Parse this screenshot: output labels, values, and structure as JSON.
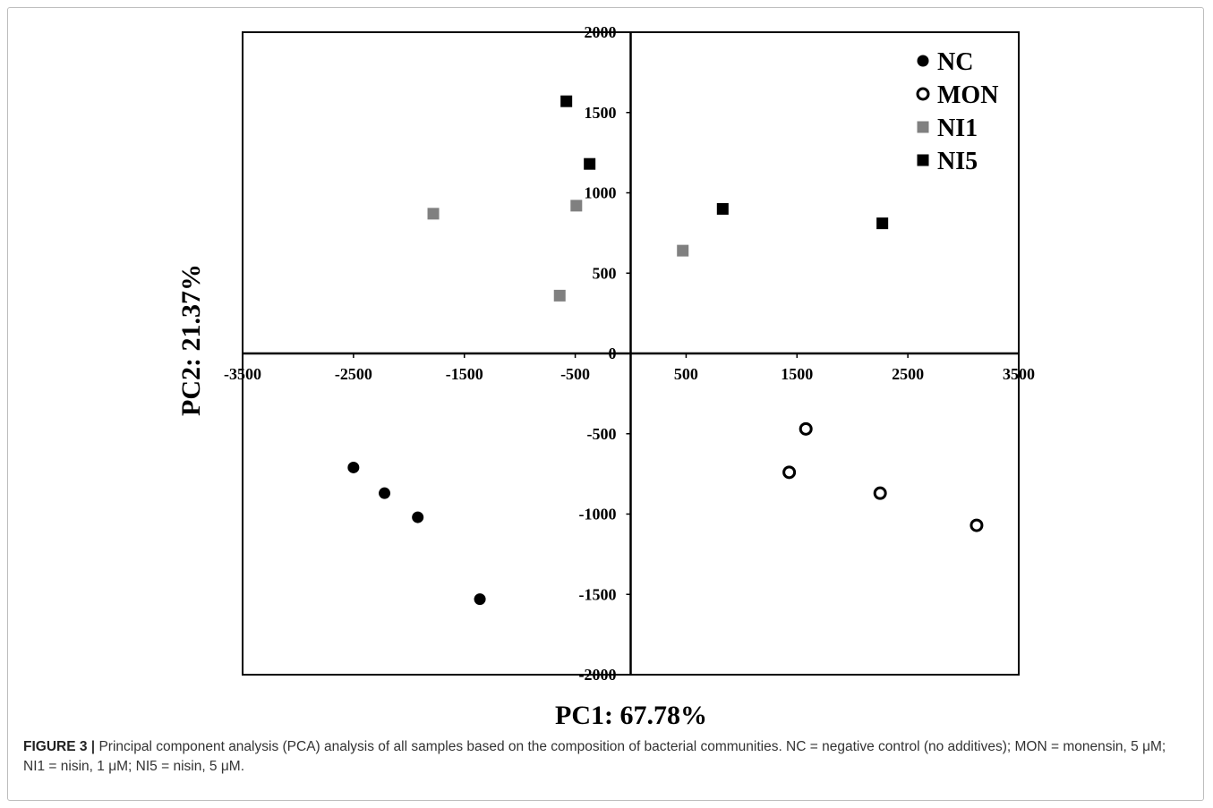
{
  "chart_data": {
    "type": "scatter",
    "xlabel": "PC1: 67.78%",
    "ylabel": "PC2: 21.37%",
    "xlim": [
      -3500,
      3500
    ],
    "ylim": [
      -2000,
      2000
    ],
    "x_ticks": [
      "-3500",
      "-2500",
      "-1500",
      "-500",
      "500",
      "1500",
      "2500",
      "3500"
    ],
    "y_ticks": [
      "2000",
      "1500",
      "1000",
      "500",
      "0",
      "-500",
      "-1000",
      "-1500",
      "-2000"
    ],
    "legend_position": "top-right",
    "grid": false,
    "series": [
      {
        "name": "NC",
        "marker": "filled-circle",
        "color": "#000000",
        "points": [
          [
            -2500,
            -710
          ],
          [
            -2220,
            -870
          ],
          [
            -1920,
            -1020
          ],
          [
            -1360,
            -1530
          ]
        ]
      },
      {
        "name": "MON",
        "marker": "open-circle",
        "color": "#000000",
        "points": [
          [
            1580,
            -470
          ],
          [
            1430,
            -740
          ],
          [
            2250,
            -870
          ],
          [
            3120,
            -1070
          ]
        ]
      },
      {
        "name": "NI1",
        "marker": "filled-square",
        "color": "#808080",
        "points": [
          [
            -1780,
            870
          ],
          [
            -490,
            920
          ],
          [
            -640,
            360
          ],
          [
            470,
            640
          ]
        ]
      },
      {
        "name": "NI5",
        "marker": "filled-square",
        "color": "#000000",
        "points": [
          [
            -580,
            1570
          ],
          [
            -370,
            1180
          ],
          [
            830,
            900
          ],
          [
            2270,
            810
          ]
        ]
      }
    ]
  },
  "caption": {
    "label": "FIGURE 3",
    "separator": "|",
    "text": " Principal component analysis (PCA) analysis of all samples based on the composition of bacterial communities. NC = negative control (no additives); MON = monensin, 5 μM; NI1 = nisin, 1 μM; NI5 = nisin, 5 μM."
  }
}
